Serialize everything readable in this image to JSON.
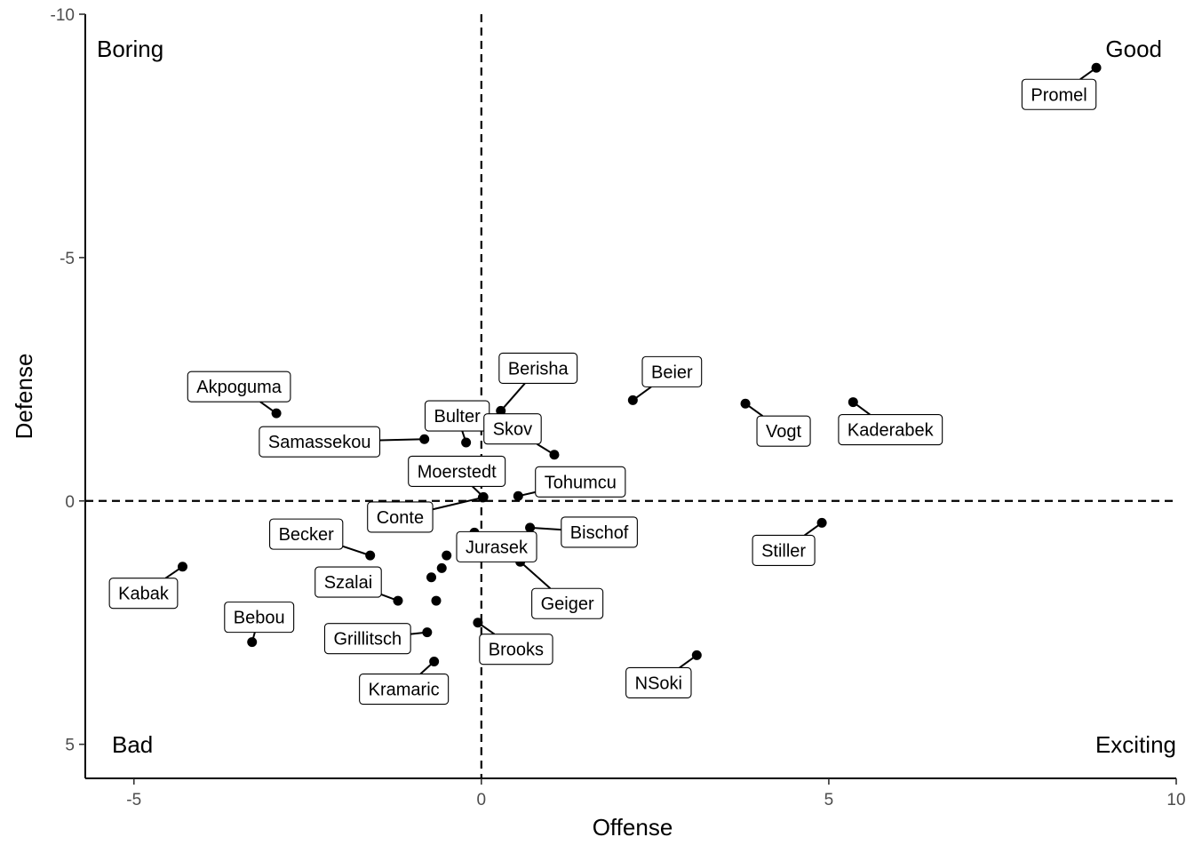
{
  "chart_data": {
    "type": "scatter",
    "title": "",
    "xlabel": "Offense",
    "ylabel": "Defense",
    "xlim": [
      -5.7,
      10.0
    ],
    "ylim": [
      5.7,
      -10.0
    ],
    "y_reversed": true,
    "x_ticks": [
      -5,
      0,
      5,
      10
    ],
    "x_tick_labels": [
      "-5",
      "0",
      "5",
      "10"
    ],
    "y_ticks": [
      -10,
      -5,
      0,
      5
    ],
    "y_tick_labels": [
      "-10",
      "-5",
      "0",
      "5"
    ],
    "reference_lines": {
      "x": 0,
      "y": 0,
      "style": "dashed"
    },
    "grid": false,
    "quadrant_labels": [
      {
        "text": "Boring",
        "corner": "top-left"
      },
      {
        "text": "Good",
        "corner": "top-right"
      },
      {
        "text": "Bad",
        "corner": "bottom-left"
      },
      {
        "text": "Exciting",
        "corner": "bottom-right"
      }
    ],
    "points": [
      {
        "name": "Promel",
        "x": 8.85,
        "y": -8.9
      },
      {
        "name": "Akpoguma",
        "x": -2.95,
        "y": -1.8
      },
      {
        "name": "Samassekou",
        "x": -0.82,
        "y": -1.27
      },
      {
        "name": "Bulter",
        "x": -0.22,
        "y": -1.2
      },
      {
        "name": "Berisha",
        "x": 0.28,
        "y": -1.85
      },
      {
        "name": "Beier",
        "x": 2.18,
        "y": -2.07
      },
      {
        "name": "Skov",
        "x": 1.05,
        "y": -0.95
      },
      {
        "name": "Vogt",
        "x": 3.8,
        "y": -2.0
      },
      {
        "name": "Kaderabek",
        "x": 5.35,
        "y": -2.03
      },
      {
        "name": "Moerstedt",
        "x": 0.03,
        "y": -0.08
      },
      {
        "name": "Tohumcu",
        "x": 0.53,
        "y": -0.1
      },
      {
        "name": "Conte",
        "x": 0.02,
        "y": -0.07
      },
      {
        "name": "Bischof",
        "x": 0.7,
        "y": 0.55
      },
      {
        "name": "Stiller",
        "x": 4.9,
        "y": 0.45
      },
      {
        "name": "Becker",
        "x": -1.6,
        "y": 1.12
      },
      {
        "name": "Jurasek",
        "x": -0.1,
        "y": 0.65
      },
      {
        "name": "Geiger",
        "x": 0.56,
        "y": 1.25
      },
      {
        "name": "Kabak",
        "x": -4.3,
        "y": 1.35
      },
      {
        "name": "Szalai",
        "x": -1.2,
        "y": 2.05
      },
      {
        "name": "Bebou",
        "x": -3.3,
        "y": 2.9
      },
      {
        "name": "Grillitsch",
        "x": -0.78,
        "y": 2.7
      },
      {
        "name": "Brooks",
        "x": -0.05,
        "y": 2.5
      },
      {
        "name": "Kramaric",
        "x": -0.68,
        "y": 3.3
      },
      {
        "name": "NSoki",
        "x": 3.1,
        "y": 3.17
      },
      {
        "name": "",
        "x": -0.5,
        "y": 1.12
      },
      {
        "name": "",
        "x": -0.57,
        "y": 1.38
      },
      {
        "name": "",
        "x": -0.72,
        "y": 1.57
      },
      {
        "name": "",
        "x": -0.65,
        "y": 2.05
      }
    ]
  }
}
